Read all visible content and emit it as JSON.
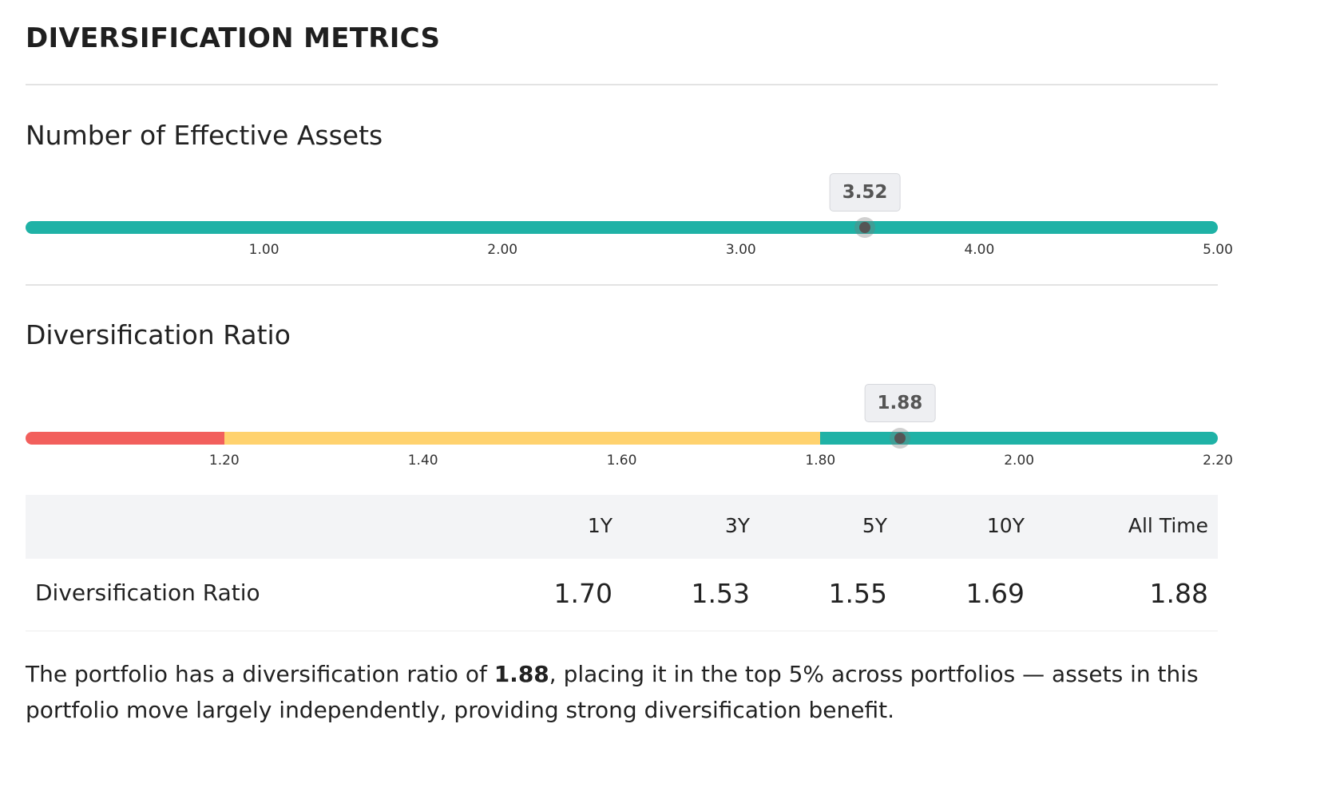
{
  "page": {
    "title": "DIVERSIFICATION METRICS"
  },
  "effective_assets": {
    "title": "Number of Effective Assets",
    "value": 3.52,
    "value_label": "3.52",
    "min": 0,
    "max": 5,
    "ticks": [
      {
        "value": 1,
        "label": "1.00"
      },
      {
        "value": 2,
        "label": "2.00"
      },
      {
        "value": 3,
        "label": "3.00"
      },
      {
        "value": 4,
        "label": "4.00"
      },
      {
        "value": 5,
        "label": "5.00"
      }
    ],
    "segments": [
      {
        "from": 0,
        "to": 5,
        "color": "#1fb2a6"
      }
    ]
  },
  "diversification_ratio": {
    "title": "Diversification Ratio",
    "value": 1.88,
    "value_label": "1.88",
    "min": 1.0,
    "max": 2.2,
    "ticks": [
      {
        "value": 1.2,
        "label": "1.20"
      },
      {
        "value": 1.4,
        "label": "1.40"
      },
      {
        "value": 1.6,
        "label": "1.60"
      },
      {
        "value": 1.8,
        "label": "1.80"
      },
      {
        "value": 2.0,
        "label": "2.00"
      },
      {
        "value": 2.2,
        "label": "2.20"
      }
    ],
    "segments": [
      {
        "from": 1.0,
        "to": 1.2,
        "color": "#f25f5c"
      },
      {
        "from": 1.2,
        "to": 1.8,
        "color": "#ffd26e"
      },
      {
        "from": 1.8,
        "to": 2.2,
        "color": "#1fb2a6"
      }
    ]
  },
  "table": {
    "columns": [
      "1Y",
      "3Y",
      "5Y",
      "10Y",
      "All Time"
    ],
    "row_label": "Diversification Ratio",
    "values": [
      "1.70",
      "1.53",
      "1.55",
      "1.69",
      "1.88"
    ]
  },
  "summary": {
    "before": "The portfolio has a diversification ratio of ",
    "highlight": "1.88",
    "after": ", placing it in the top 5% across portfolios — assets in this portfolio move largely independently, providing strong diversification benefit."
  }
}
